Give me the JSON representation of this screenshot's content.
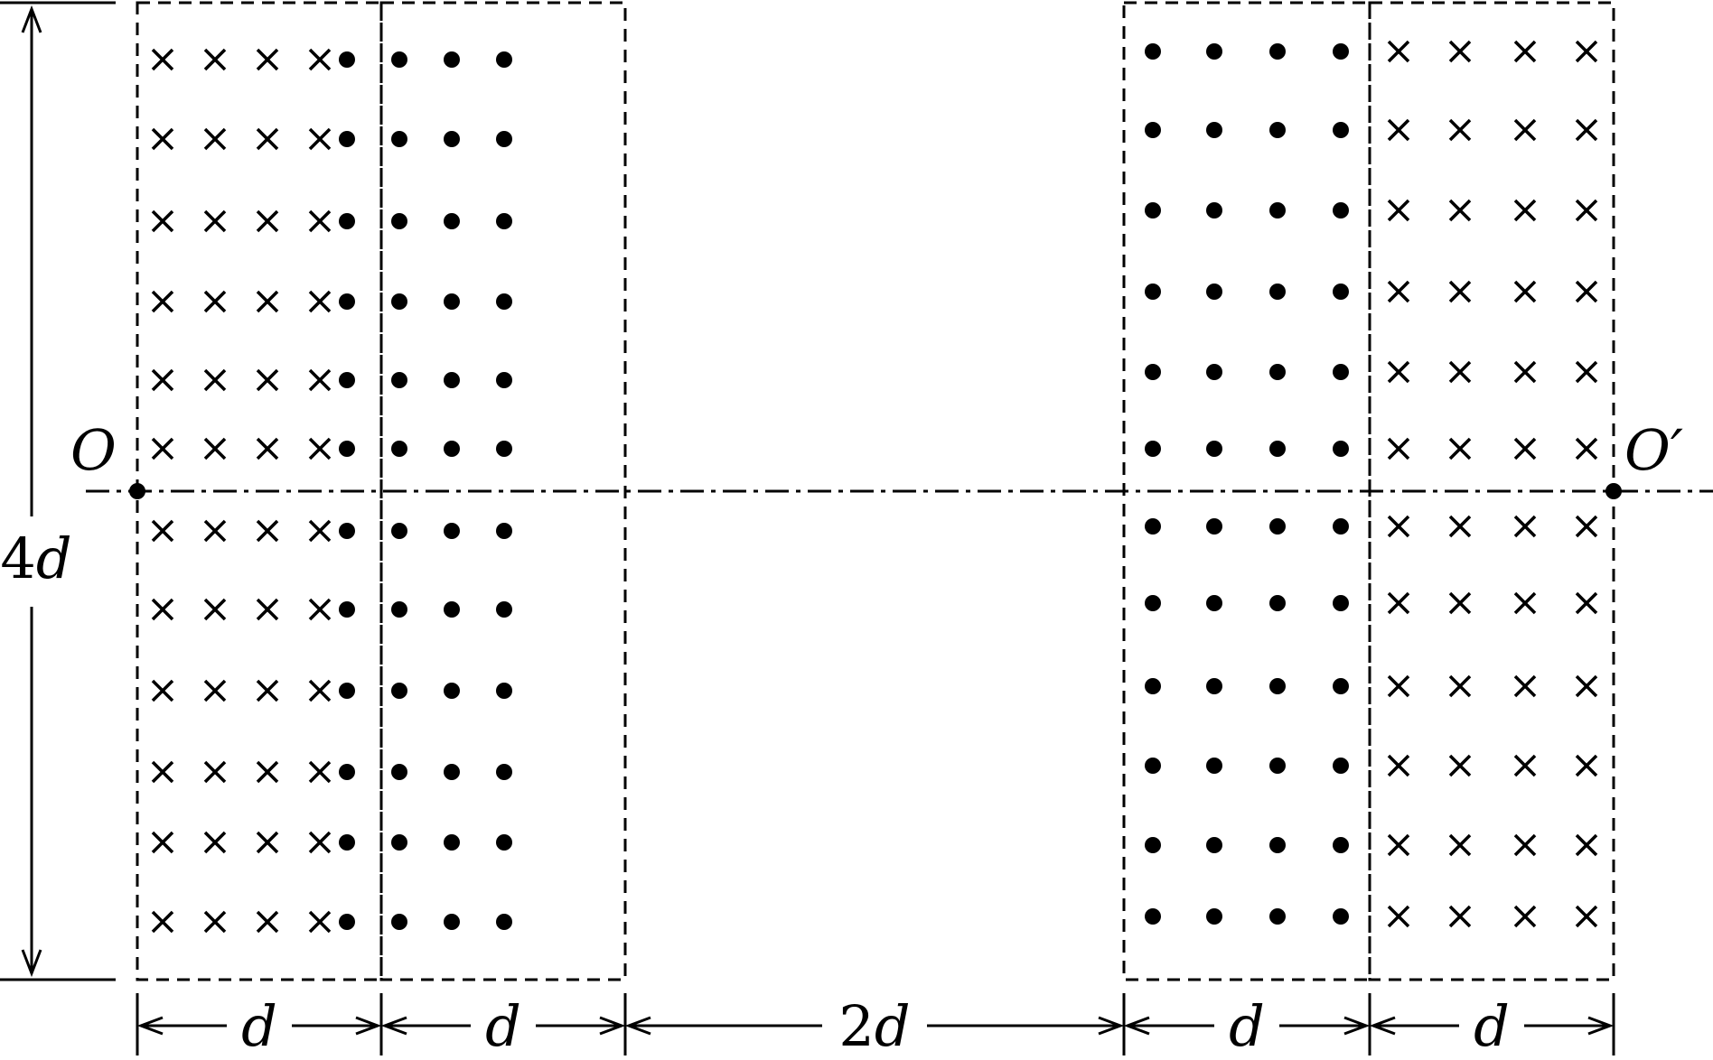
{
  "labels": {
    "origin": "O",
    "origin_prime": "O′",
    "height": "4d",
    "widths": [
      "d",
      "d",
      "2d",
      "d",
      "d"
    ]
  },
  "regions": [
    {
      "field": "into-page",
      "symbol": "×"
    },
    {
      "field": "out-of-page",
      "symbol": "•"
    },
    {
      "field": "none",
      "symbol": ""
    },
    {
      "field": "out-of-page",
      "symbol": "•"
    },
    {
      "field": "into-page",
      "symbol": "×"
    }
  ],
  "colors": {
    "ink": "#000000",
    "background": "#ffffff"
  }
}
